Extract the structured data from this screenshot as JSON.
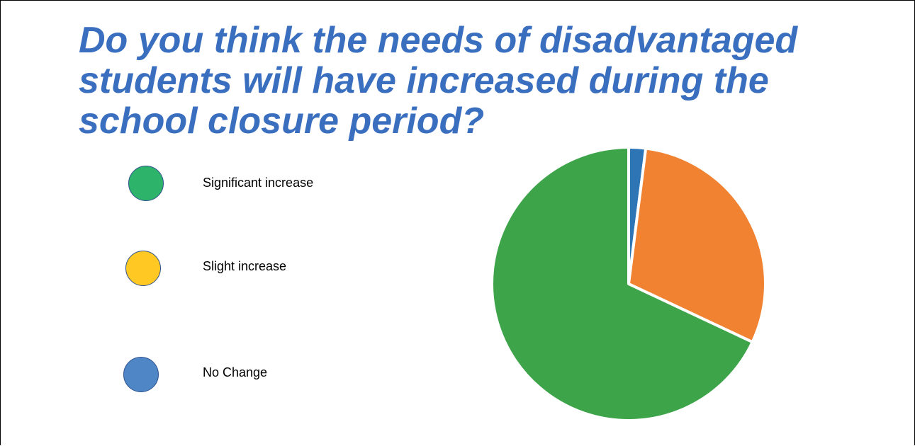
{
  "title": "Do you think the needs of disadvantaged students will have increased during the school closure period?",
  "legend": [
    {
      "label": "Significant increase",
      "color": "#2EB36A"
    },
    {
      "label": "Slight increase",
      "color": "#FFC822"
    },
    {
      "label": "No Change",
      "color": "#4F86C6"
    }
  ],
  "chart_data": {
    "type": "pie",
    "title": "Do you think the needs of disadvantaged students will have increased during the school closure period?",
    "slices": [
      {
        "color": "#2E75B6",
        "percent": 2
      },
      {
        "color": "#F08232",
        "percent": 30
      },
      {
        "color": "#3DA44A",
        "percent": 68
      }
    ],
    "legend_placement": "left",
    "data_labels": false
  }
}
